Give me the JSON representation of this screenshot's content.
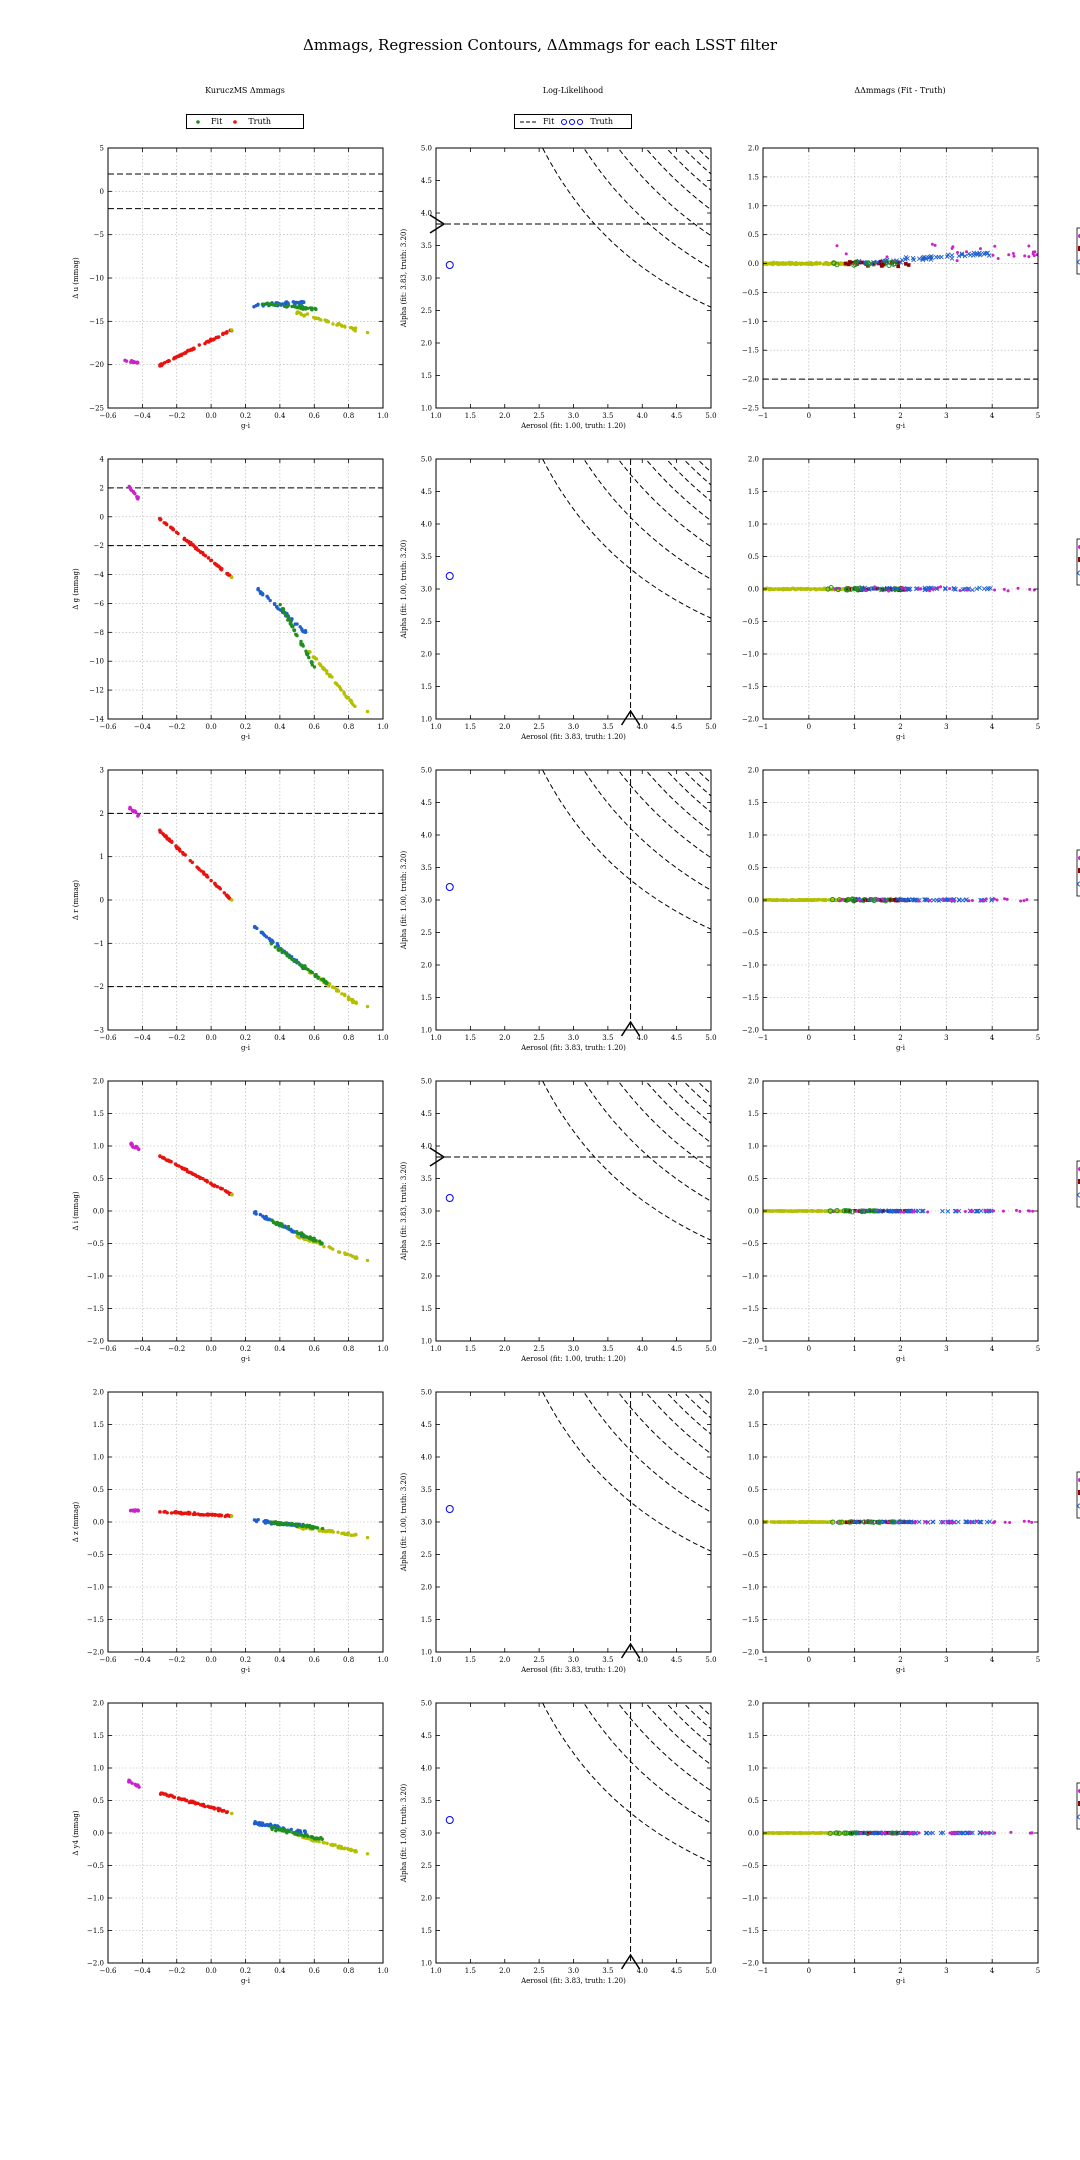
{
  "title": "Δmmags, Regression Contours, ΔΔmmags for each LSST filter",
  "columns": [
    "KuruczMS Δmmags",
    "Log-Likelihood",
    "ΔΔmmags (Fit - Truth)"
  ],
  "legends": {
    "left": {
      "fit": "Fit",
      "truth": "Truth"
    },
    "middle": {
      "fit": "Fit",
      "truth": "Truth"
    }
  },
  "colors": {
    "red": "#e8120f",
    "green": "#1f8f1f",
    "blue": "#1e5fd0",
    "olive": "#b4bf00",
    "magenta": "#cc22cc",
    "dark_red": "#8b0000",
    "navy": "#1a237e"
  },
  "chart_data": [
    {
      "type": "scatter",
      "panel": "kurucz",
      "band": "u",
      "xlabel": "g-i",
      "ylabel": "Δ u (mmag)",
      "xlim": [
        -0.6,
        1.0
      ],
      "ylim": [
        -25,
        5
      ],
      "xticks": [
        "−0.6",
        "−0.4",
        "−0.2",
        "0.0",
        "0.2",
        "0.4",
        "0.6",
        "0.8",
        "1.0"
      ],
      "yticks": [
        "−25",
        "−20",
        "−15",
        "−10",
        "−5",
        "0",
        "5"
      ],
      "hlines": [
        2,
        -2
      ],
      "grid": true
    },
    {
      "type": "line",
      "panel": "loglike",
      "band": "u",
      "xlabel": "Aerosol (fit: 1.00, truth: 1.20)",
      "ylabel": "Alpha (fit: 3.83, truth: 3.20)",
      "xlim": [
        1.0,
        5.0
      ],
      "ylim": [
        1.0,
        5.0
      ],
      "xticks": [
        "1.0",
        "1.5",
        "2.0",
        "2.5",
        "3.0",
        "3.5",
        "4.0",
        "4.5",
        "5.0"
      ],
      "yticks": [
        "1.0",
        "1.5",
        "2.0",
        "2.5",
        "3.0",
        "3.5",
        "4.0",
        "4.5",
        "5.0"
      ],
      "hline": 3.83,
      "vline": null,
      "truth": [
        1.2,
        3.2
      ],
      "grid": false
    },
    {
      "type": "scatter",
      "panel": "ddmmags",
      "band": "u",
      "xlabel": "g-i",
      "ylabel": "",
      "xlim": [
        -1,
        5
      ],
      "ylim": [
        -2.5,
        2.0
      ],
      "xticks": [
        "−1",
        "0",
        "1",
        "2",
        "3",
        "4",
        "5"
      ],
      "yticks": [
        "−2.5",
        "−2.0",
        "−1.5",
        "−1.0",
        "−0.5",
        "0.0",
        "0.5",
        "1.0",
        "1.5",
        "2.0"
      ],
      "hlines": [
        -2
      ],
      "grid": true
    },
    {
      "type": "scatter",
      "panel": "kurucz",
      "band": "g",
      "xlabel": "g-i",
      "ylabel": "Δ g (mmag)",
      "xlim": [
        -0.6,
        1.0
      ],
      "ylim": [
        -14,
        4
      ],
      "xticks": [
        "−0.6",
        "−0.4",
        "−0.2",
        "0.0",
        "0.2",
        "0.4",
        "0.6",
        "0.8",
        "1.0"
      ],
      "yticks": [
        "−14",
        "−12",
        "−10",
        "−8",
        "−6",
        "−4",
        "−2",
        "0",
        "2",
        "4"
      ],
      "hlines": [
        2,
        -2
      ],
      "grid": true
    },
    {
      "type": "line",
      "panel": "loglike",
      "band": "g",
      "xlabel": "Aerosol (fit: 3.83, truth: 1.20)",
      "ylabel": "Alpha (fit: 1.00, truth: 3.20)",
      "xlim": [
        1.0,
        5.0
      ],
      "ylim": [
        1.0,
        5.0
      ],
      "xticks": [
        "1.0",
        "1.5",
        "2.0",
        "2.5",
        "3.0",
        "3.5",
        "4.0",
        "4.5",
        "5.0"
      ],
      "yticks": [
        "1.0",
        "1.5",
        "2.0",
        "2.5",
        "3.0",
        "3.5",
        "4.0",
        "4.5",
        "5.0"
      ],
      "hline": null,
      "vline": 3.83,
      "truth": [
        1.2,
        3.2
      ],
      "grid": false
    },
    {
      "type": "scatter",
      "panel": "ddmmags",
      "band": "g",
      "xlabel": "g-i",
      "ylabel": "",
      "xlim": [
        -1,
        5
      ],
      "ylim": [
        -2.0,
        2.0
      ],
      "xticks": [
        "−1",
        "0",
        "1",
        "2",
        "3",
        "4",
        "5"
      ],
      "yticks": [
        "−2.0",
        "−1.5",
        "−1.0",
        "−0.5",
        "0.0",
        "0.5",
        "1.0",
        "1.5",
        "2.0"
      ],
      "hlines": [],
      "grid": true
    },
    {
      "type": "scatter",
      "panel": "kurucz",
      "band": "r",
      "xlabel": "g-i",
      "ylabel": "Δ r (mmag)",
      "xlim": [
        -0.6,
        1.0
      ],
      "ylim": [
        -3,
        3
      ],
      "xticks": [
        "−0.6",
        "−0.4",
        "−0.2",
        "0.0",
        "0.2",
        "0.4",
        "0.6",
        "0.8",
        "1.0"
      ],
      "yticks": [
        "−3",
        "−2",
        "−1",
        "0",
        "1",
        "2",
        "3"
      ],
      "hlines": [
        2,
        -2
      ],
      "grid": true
    },
    {
      "type": "line",
      "panel": "loglike",
      "band": "r",
      "xlabel": "Aerosol (fit: 3.83, truth: 1.20)",
      "ylabel": "Alpha (fit: 1.00, truth: 3.20)",
      "xlim": [
        1.0,
        5.0
      ],
      "ylim": [
        1.0,
        5.0
      ],
      "xticks": [
        "1.0",
        "1.5",
        "2.0",
        "2.5",
        "3.0",
        "3.5",
        "4.0",
        "4.5",
        "5.0"
      ],
      "yticks": [
        "1.0",
        "1.5",
        "2.0",
        "2.5",
        "3.0",
        "3.5",
        "4.0",
        "4.5",
        "5.0"
      ],
      "hline": null,
      "vline": 3.83,
      "truth": [
        1.2,
        3.2
      ],
      "grid": false
    },
    {
      "type": "scatter",
      "panel": "ddmmags",
      "band": "r",
      "xlabel": "g-i",
      "ylabel": "",
      "xlim": [
        -1,
        5
      ],
      "ylim": [
        -2.0,
        2.0
      ],
      "xticks": [
        "−1",
        "0",
        "1",
        "2",
        "3",
        "4",
        "5"
      ],
      "yticks": [
        "−2.0",
        "−1.5",
        "−1.0",
        "−0.5",
        "0.0",
        "0.5",
        "1.0",
        "1.5",
        "2.0"
      ],
      "hlines": [],
      "grid": true
    },
    {
      "type": "scatter",
      "panel": "kurucz",
      "band": "i",
      "xlabel": "g-i",
      "ylabel": "Δ i (mmag)",
      "xlim": [
        -0.6,
        1.0
      ],
      "ylim": [
        -2.0,
        2.0
      ],
      "xticks": [
        "−0.6",
        "−0.4",
        "−0.2",
        "0.0",
        "0.2",
        "0.4",
        "0.6",
        "0.8",
        "1.0"
      ],
      "yticks": [
        "−2.0",
        "−1.5",
        "−1.0",
        "−0.5",
        "0.0",
        "0.5",
        "1.0",
        "1.5",
        "2.0"
      ],
      "hlines": [],
      "grid": true
    },
    {
      "type": "line",
      "panel": "loglike",
      "band": "i",
      "xlabel": "Aerosol (fit: 1.00, truth: 1.20)",
      "ylabel": "Alpha (fit: 3.83, truth: 3.20)",
      "xlim": [
        1.0,
        5.0
      ],
      "ylim": [
        1.0,
        5.0
      ],
      "xticks": [
        "1.0",
        "1.5",
        "2.0",
        "2.5",
        "3.0",
        "3.5",
        "4.0",
        "4.5",
        "5.0"
      ],
      "yticks": [
        "1.0",
        "1.5",
        "2.0",
        "2.5",
        "3.0",
        "3.5",
        "4.0",
        "4.5",
        "5.0"
      ],
      "hline": 3.83,
      "vline": null,
      "truth": [
        1.2,
        3.2
      ],
      "grid": false
    },
    {
      "type": "scatter",
      "panel": "ddmmags",
      "band": "i",
      "xlabel": "g-i",
      "ylabel": "",
      "xlim": [
        -1,
        5
      ],
      "ylim": [
        -2.0,
        2.0
      ],
      "xticks": [
        "−1",
        "0",
        "1",
        "2",
        "3",
        "4",
        "5"
      ],
      "yticks": [
        "−2.0",
        "−1.5",
        "−1.0",
        "−0.5",
        "0.0",
        "0.5",
        "1.0",
        "1.5",
        "2.0"
      ],
      "hlines": [],
      "grid": true
    },
    {
      "type": "scatter",
      "panel": "kurucz",
      "band": "z",
      "xlabel": "g-i",
      "ylabel": "Δ z (mmag)",
      "xlim": [
        -0.6,
        1.0
      ],
      "ylim": [
        -2.0,
        2.0
      ],
      "xticks": [
        "−0.6",
        "−0.4",
        "−0.2",
        "0.0",
        "0.2",
        "0.4",
        "0.6",
        "0.8",
        "1.0"
      ],
      "yticks": [
        "−2.0",
        "−1.5",
        "−1.0",
        "−0.5",
        "0.0",
        "0.5",
        "1.0",
        "1.5",
        "2.0"
      ],
      "hlines": [],
      "grid": true
    },
    {
      "type": "line",
      "panel": "loglike",
      "band": "z",
      "xlabel": "Aerosol (fit: 3.83, truth: 1.20)",
      "ylabel": "Alpha (fit: 1.00, truth: 3.20)",
      "xlim": [
        1.0,
        5.0
      ],
      "ylim": [
        1.0,
        5.0
      ],
      "xticks": [
        "1.0",
        "1.5",
        "2.0",
        "2.5",
        "3.0",
        "3.5",
        "4.0",
        "4.5",
        "5.0"
      ],
      "yticks": [
        "1.0",
        "1.5",
        "2.0",
        "2.5",
        "3.0",
        "3.5",
        "4.0",
        "4.5",
        "5.0"
      ],
      "hline": null,
      "vline": 3.83,
      "truth": [
        1.2,
        3.2
      ],
      "grid": false
    },
    {
      "type": "scatter",
      "panel": "ddmmags",
      "band": "z",
      "xlabel": "g-i",
      "ylabel": "",
      "xlim": [
        -1,
        5
      ],
      "ylim": [
        -2.0,
        2.0
      ],
      "xticks": [
        "−1",
        "0",
        "1",
        "2",
        "3",
        "4",
        "5"
      ],
      "yticks": [
        "−2.0",
        "−1.5",
        "−1.0",
        "−0.5",
        "0.0",
        "0.5",
        "1.0",
        "1.5",
        "2.0"
      ],
      "hlines": [],
      "grid": true
    },
    {
      "type": "scatter",
      "panel": "kurucz",
      "band": "y4",
      "xlabel": "g-i",
      "ylabel": "Δ y4 (mmag)",
      "xlim": [
        -0.6,
        1.0
      ],
      "ylim": [
        -2.0,
        2.0
      ],
      "xticks": [
        "−0.6",
        "−0.4",
        "−0.2",
        "0.0",
        "0.2",
        "0.4",
        "0.6",
        "0.8",
        "1.0"
      ],
      "yticks": [
        "−2.0",
        "−1.5",
        "−1.0",
        "−0.5",
        "0.0",
        "0.5",
        "1.0",
        "1.5",
        "2.0"
      ],
      "hlines": [],
      "grid": true
    },
    {
      "type": "line",
      "panel": "loglike",
      "band": "y4",
      "xlabel": "Aerosol (fit: 3.83, truth: 1.20)",
      "ylabel": "Alpha (fit: 1.00, truth: 3.20)",
      "xlim": [
        1.0,
        5.0
      ],
      "ylim": [
        1.0,
        5.0
      ],
      "xticks": [
        "1.0",
        "1.5",
        "2.0",
        "2.5",
        "3.0",
        "3.5",
        "4.0",
        "4.5",
        "5.0"
      ],
      "yticks": [
        "1.0",
        "1.5",
        "2.0",
        "2.5",
        "3.0",
        "3.5",
        "4.0",
        "4.5",
        "5.0"
      ],
      "hline": null,
      "vline": 3.83,
      "truth": [
        1.2,
        3.2
      ],
      "grid": false
    },
    {
      "type": "scatter",
      "panel": "ddmmags",
      "band": "y4",
      "xlabel": "g-i",
      "ylabel": "",
      "xlim": [
        -1,
        5
      ],
      "ylim": [
        -2.0,
        2.0
      ],
      "xticks": [
        "−1",
        "0",
        "1",
        "2",
        "3",
        "4",
        "5"
      ],
      "yticks": [
        "−2.0",
        "−1.5",
        "−1.0",
        "−0.5",
        "0.0",
        "0.5",
        "1.0",
        "1.5",
        "2.0"
      ],
      "hlines": [],
      "grid": true
    }
  ]
}
